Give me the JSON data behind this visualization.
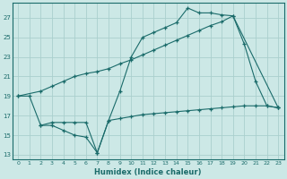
{
  "bg_color": "#cce8e6",
  "grid_color": "#aacfcd",
  "line_color": "#1a6b6a",
  "xlabel": "Humidex (Indice chaleur)",
  "xlim": [
    -0.5,
    23.5
  ],
  "ylim": [
    12.5,
    28.5
  ],
  "xticks": [
    0,
    1,
    2,
    3,
    4,
    5,
    6,
    7,
    8,
    9,
    10,
    11,
    12,
    13,
    14,
    15,
    16,
    17,
    18,
    19,
    20,
    21,
    22,
    23
  ],
  "yticks": [
    13,
    15,
    17,
    19,
    21,
    23,
    25,
    27
  ],
  "line1_x": [
    0,
    1,
    2,
    3,
    4,
    5,
    6,
    7,
    8,
    9,
    10,
    11,
    12,
    13,
    14,
    15,
    16,
    17,
    18,
    19,
    20,
    21,
    22,
    23
  ],
  "line1_y": [
    19.0,
    19.0,
    16.0,
    16.0,
    15.5,
    15.0,
    14.8,
    13.2,
    16.5,
    19.5,
    23.0,
    25.0,
    25.5,
    26.0,
    26.5,
    28.0,
    27.5,
    27.5,
    27.3,
    27.2,
    24.3,
    20.5,
    18.0,
    17.8
  ],
  "line2_x": [
    0,
    2,
    3,
    4,
    5,
    6,
    7,
    8,
    9,
    10,
    11,
    12,
    13,
    14,
    15,
    16,
    17,
    18,
    19,
    23
  ],
  "line2_y": [
    19.0,
    19.5,
    20.0,
    20.5,
    21.0,
    21.3,
    21.5,
    21.8,
    22.3,
    22.7,
    23.2,
    23.7,
    24.2,
    24.7,
    25.2,
    25.7,
    26.2,
    26.6,
    27.2,
    17.8
  ],
  "line3_x": [
    2,
    3,
    4,
    5,
    6,
    7,
    8,
    9,
    10,
    11,
    12,
    13,
    14,
    15,
    16,
    17,
    18,
    19,
    20,
    21,
    22,
    23
  ],
  "line3_y": [
    16.0,
    16.3,
    16.3,
    16.3,
    16.3,
    13.2,
    16.5,
    16.7,
    16.9,
    17.1,
    17.2,
    17.3,
    17.4,
    17.5,
    17.6,
    17.7,
    17.8,
    17.9,
    18.0,
    18.0,
    18.0,
    17.8
  ]
}
